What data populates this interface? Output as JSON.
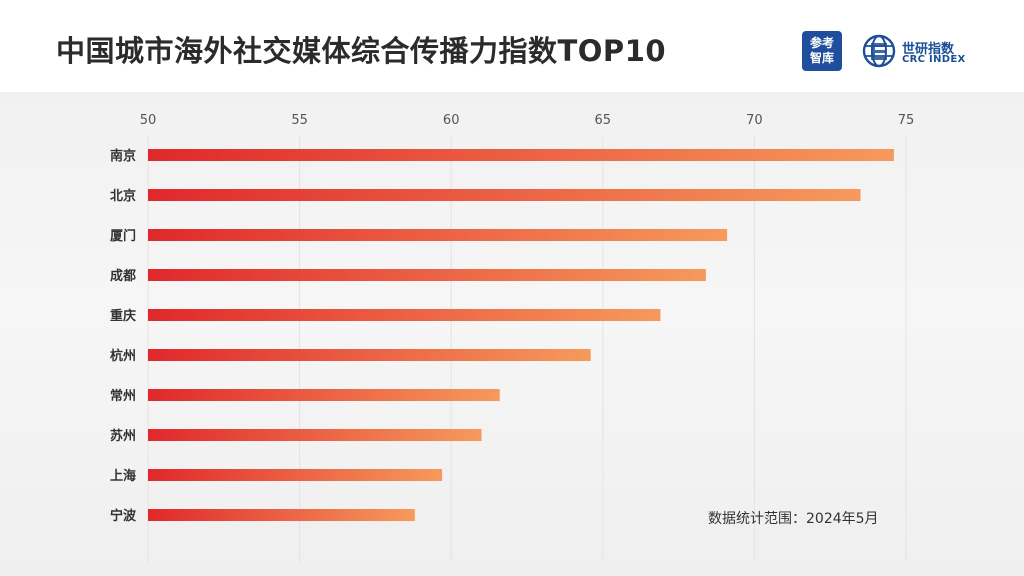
{
  "header": {
    "title": "中国城市海外社交媒体综合传播力指数TOP10",
    "logo_cankao_line1": "参考",
    "logo_cankao_line2": "智库",
    "logo_crc_name": "世研指数",
    "logo_crc_sub": "CRC INDEX"
  },
  "footnote": "数据统计范围：2024年5月",
  "colors": {
    "bar_start": "#e0282c",
    "bar_end": "#f59a5c",
    "brand_blue": "#1f4f9c"
  },
  "chart_data": {
    "type": "bar",
    "orientation": "horizontal",
    "title": "中国城市海外社交媒体综合传播力指数TOP10",
    "xlabel": "",
    "ylabel": "",
    "categories": [
      "南京",
      "北京",
      "厦门",
      "成都",
      "重庆",
      "杭州",
      "常州",
      "苏州",
      "上海",
      "宁波"
    ],
    "values": [
      74.6,
      73.5,
      69.1,
      68.4,
      66.9,
      64.6,
      61.6,
      61.0,
      59.7,
      58.8
    ],
    "xlim": [
      50,
      75
    ],
    "xticks": [
      50,
      55,
      60,
      65,
      70,
      75
    ],
    "grid": true,
    "axis_position": "top"
  }
}
